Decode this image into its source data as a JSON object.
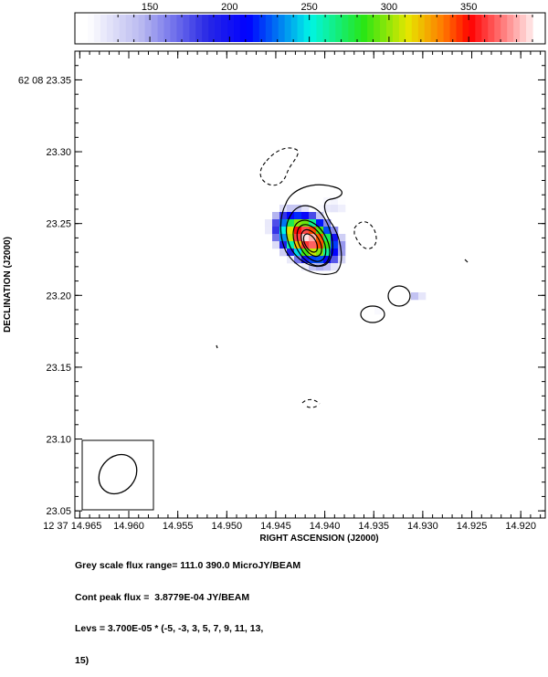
{
  "chart_data": {
    "type": "heatmap",
    "title": "",
    "xlabel": "RIGHT ASCENSION (J2000)",
    "ylabel": "DECLINATION (J2000)",
    "xlim": [
      14.9655,
      14.9175
    ],
    "ylim": [
      23.045,
      23.37
    ],
    "x_ticks": [
      14.965,
      14.96,
      14.955,
      14.95,
      14.945,
      14.94,
      14.935,
      14.93,
      14.925,
      14.92
    ],
    "x_tick_labels": [
      "12 37 14.965",
      "14.960",
      "14.955",
      "14.950",
      "14.945",
      "14.940",
      "14.935",
      "14.930",
      "14.925",
      "14.920"
    ],
    "y_ticks": [
      23.05,
      23.1,
      23.15,
      23.2,
      23.25,
      23.3,
      23.35
    ],
    "y_tick_labels": [
      "23.05",
      "23.10",
      "23.15",
      "23.20",
      "23.25",
      "23.30",
      "62 08 23.35"
    ],
    "colorbar": {
      "range": [
        111.0,
        390.0
      ],
      "ticks": [
        150,
        200,
        250,
        300,
        350
      ],
      "tick_labels": [
        "150",
        "200",
        "250",
        "300",
        "350"
      ]
    },
    "grey_scale_flux_range": [
      111.0,
      390.0
    ],
    "cont_peak_flux": 0.00038779,
    "levels_base": 3.7e-05,
    "levels": [
      -5,
      -3,
      3,
      5,
      7,
      9,
      11,
      13,
      15
    ],
    "peak_position": {
      "ra": 14.9418,
      "dec": 23.237
    },
    "features": [
      {
        "kind": "source",
        "ra": 14.9418,
        "dec": 23.245,
        "peak": 390
      },
      {
        "kind": "component",
        "ra": 14.9306,
        "dec": 23.2,
        "peak": 145
      },
      {
        "kind": "component",
        "ra": 14.9344,
        "dec": 23.187,
        "peak": 145
      },
      {
        "kind": "negative",
        "ra": 14.9455,
        "dec": 23.296
      },
      {
        "kind": "negative",
        "ra": 14.9337,
        "dec": 23.244
      },
      {
        "kind": "negative",
        "ra": 14.94,
        "dec": 23.125
      },
      {
        "kind": "noise",
        "ra": 14.9245,
        "dec": 23.222
      },
      {
        "kind": "noise",
        "ra": 14.951,
        "dec": 23.163
      }
    ]
  },
  "footer": {
    "line1": "Grey scale flux range= 111.0 390.0 MicroJY/BEAM",
    "line2": "Cont peak flux =  3.8779E-04 JY/BEAM",
    "line3": "Levs = 3.700E-05 * (-5, -3, 3, 5, 7, 9, 11, 13,",
    "line4": "15)"
  }
}
